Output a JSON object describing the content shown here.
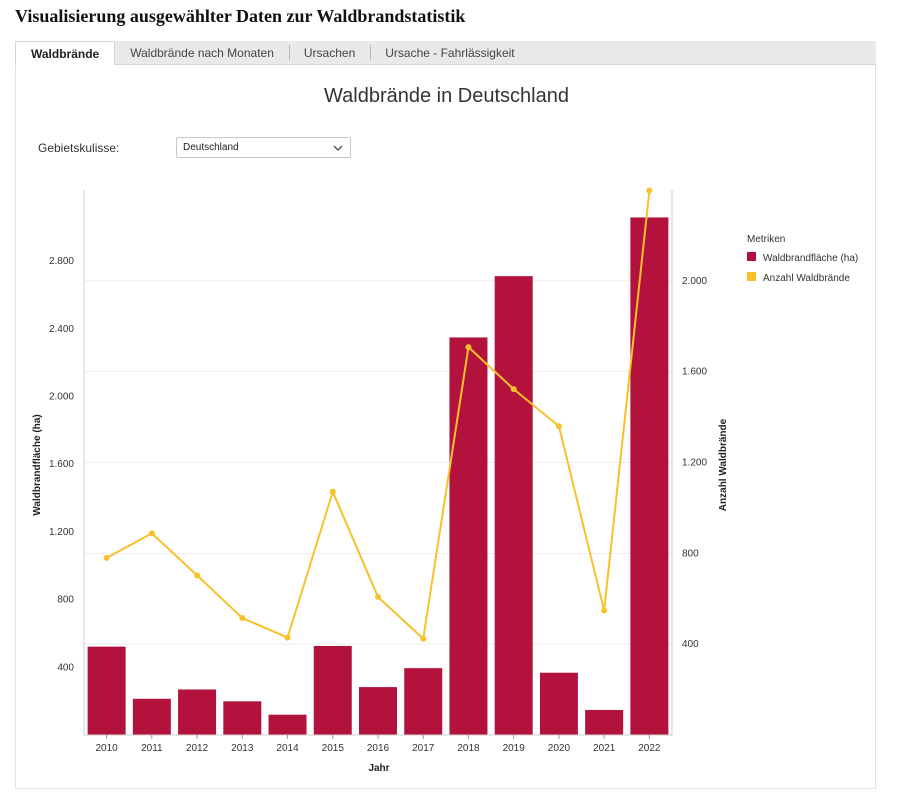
{
  "page": {
    "title": "Visualisierung ausgewählter Daten zur Waldbrandstatistik"
  },
  "tabs": [
    {
      "label": "Waldbrände",
      "active": true
    },
    {
      "label": "Waldbrände nach Monaten",
      "active": false
    },
    {
      "label": "Ursachen",
      "active": false
    },
    {
      "label": "Ursache - Fahrlässigkeit",
      "active": false
    }
  ],
  "filter": {
    "label": "Gebietskulisse:",
    "selected": "Deutschland",
    "icon": "chevron-down-icon"
  },
  "colors": {
    "bar": "#B3123C",
    "line": "#F7C12A",
    "grid": "#eeeeee"
  },
  "chart_data": {
    "type": "bar",
    "title": "Waldbrände in Deutschland",
    "xlabel": "Jahr",
    "ylabel": "Waldbrandfläche (ha)",
    "y2label": "Anzahl Waldbrände",
    "categories": [
      "2010",
      "2011",
      "2012",
      "2013",
      "2014",
      "2015",
      "2016",
      "2017",
      "2018",
      "2019",
      "2020",
      "2021",
      "2022"
    ],
    "y_ticks": [
      400,
      800,
      1200,
      1600,
      2000,
      2400,
      2800
    ],
    "y_tick_labels": [
      "400",
      "800",
      "1.200",
      "1.600",
      "2.000",
      "2.400",
      "2.800"
    ],
    "y2_ticks": [
      400,
      800,
      1200,
      1600,
      2000
    ],
    "y2_tick_labels": [
      "400",
      "800",
      "1.200",
      "1.600",
      "2.000"
    ],
    "ylim": [
      0,
      3220
    ],
    "y2lim": [
      0,
      2400
    ],
    "legend_title": "Metriken",
    "legend_position": "right",
    "series": [
      {
        "name": "Waldbrandfläche (ha)",
        "type": "bar",
        "axis": "left",
        "values": [
          522,
          214,
          269,
          199,
          120,
          526,
          283,
          395,
          2349,
          2711,
          368,
          148,
          3058
        ]
      },
      {
        "name": "Anzahl Waldbrände",
        "type": "line",
        "axis": "right",
        "values": [
          780,
          888,
          703,
          515,
          429,
          1071,
          608,
          424,
          1708,
          1523,
          1360,
          548,
          2397
        ]
      }
    ]
  }
}
